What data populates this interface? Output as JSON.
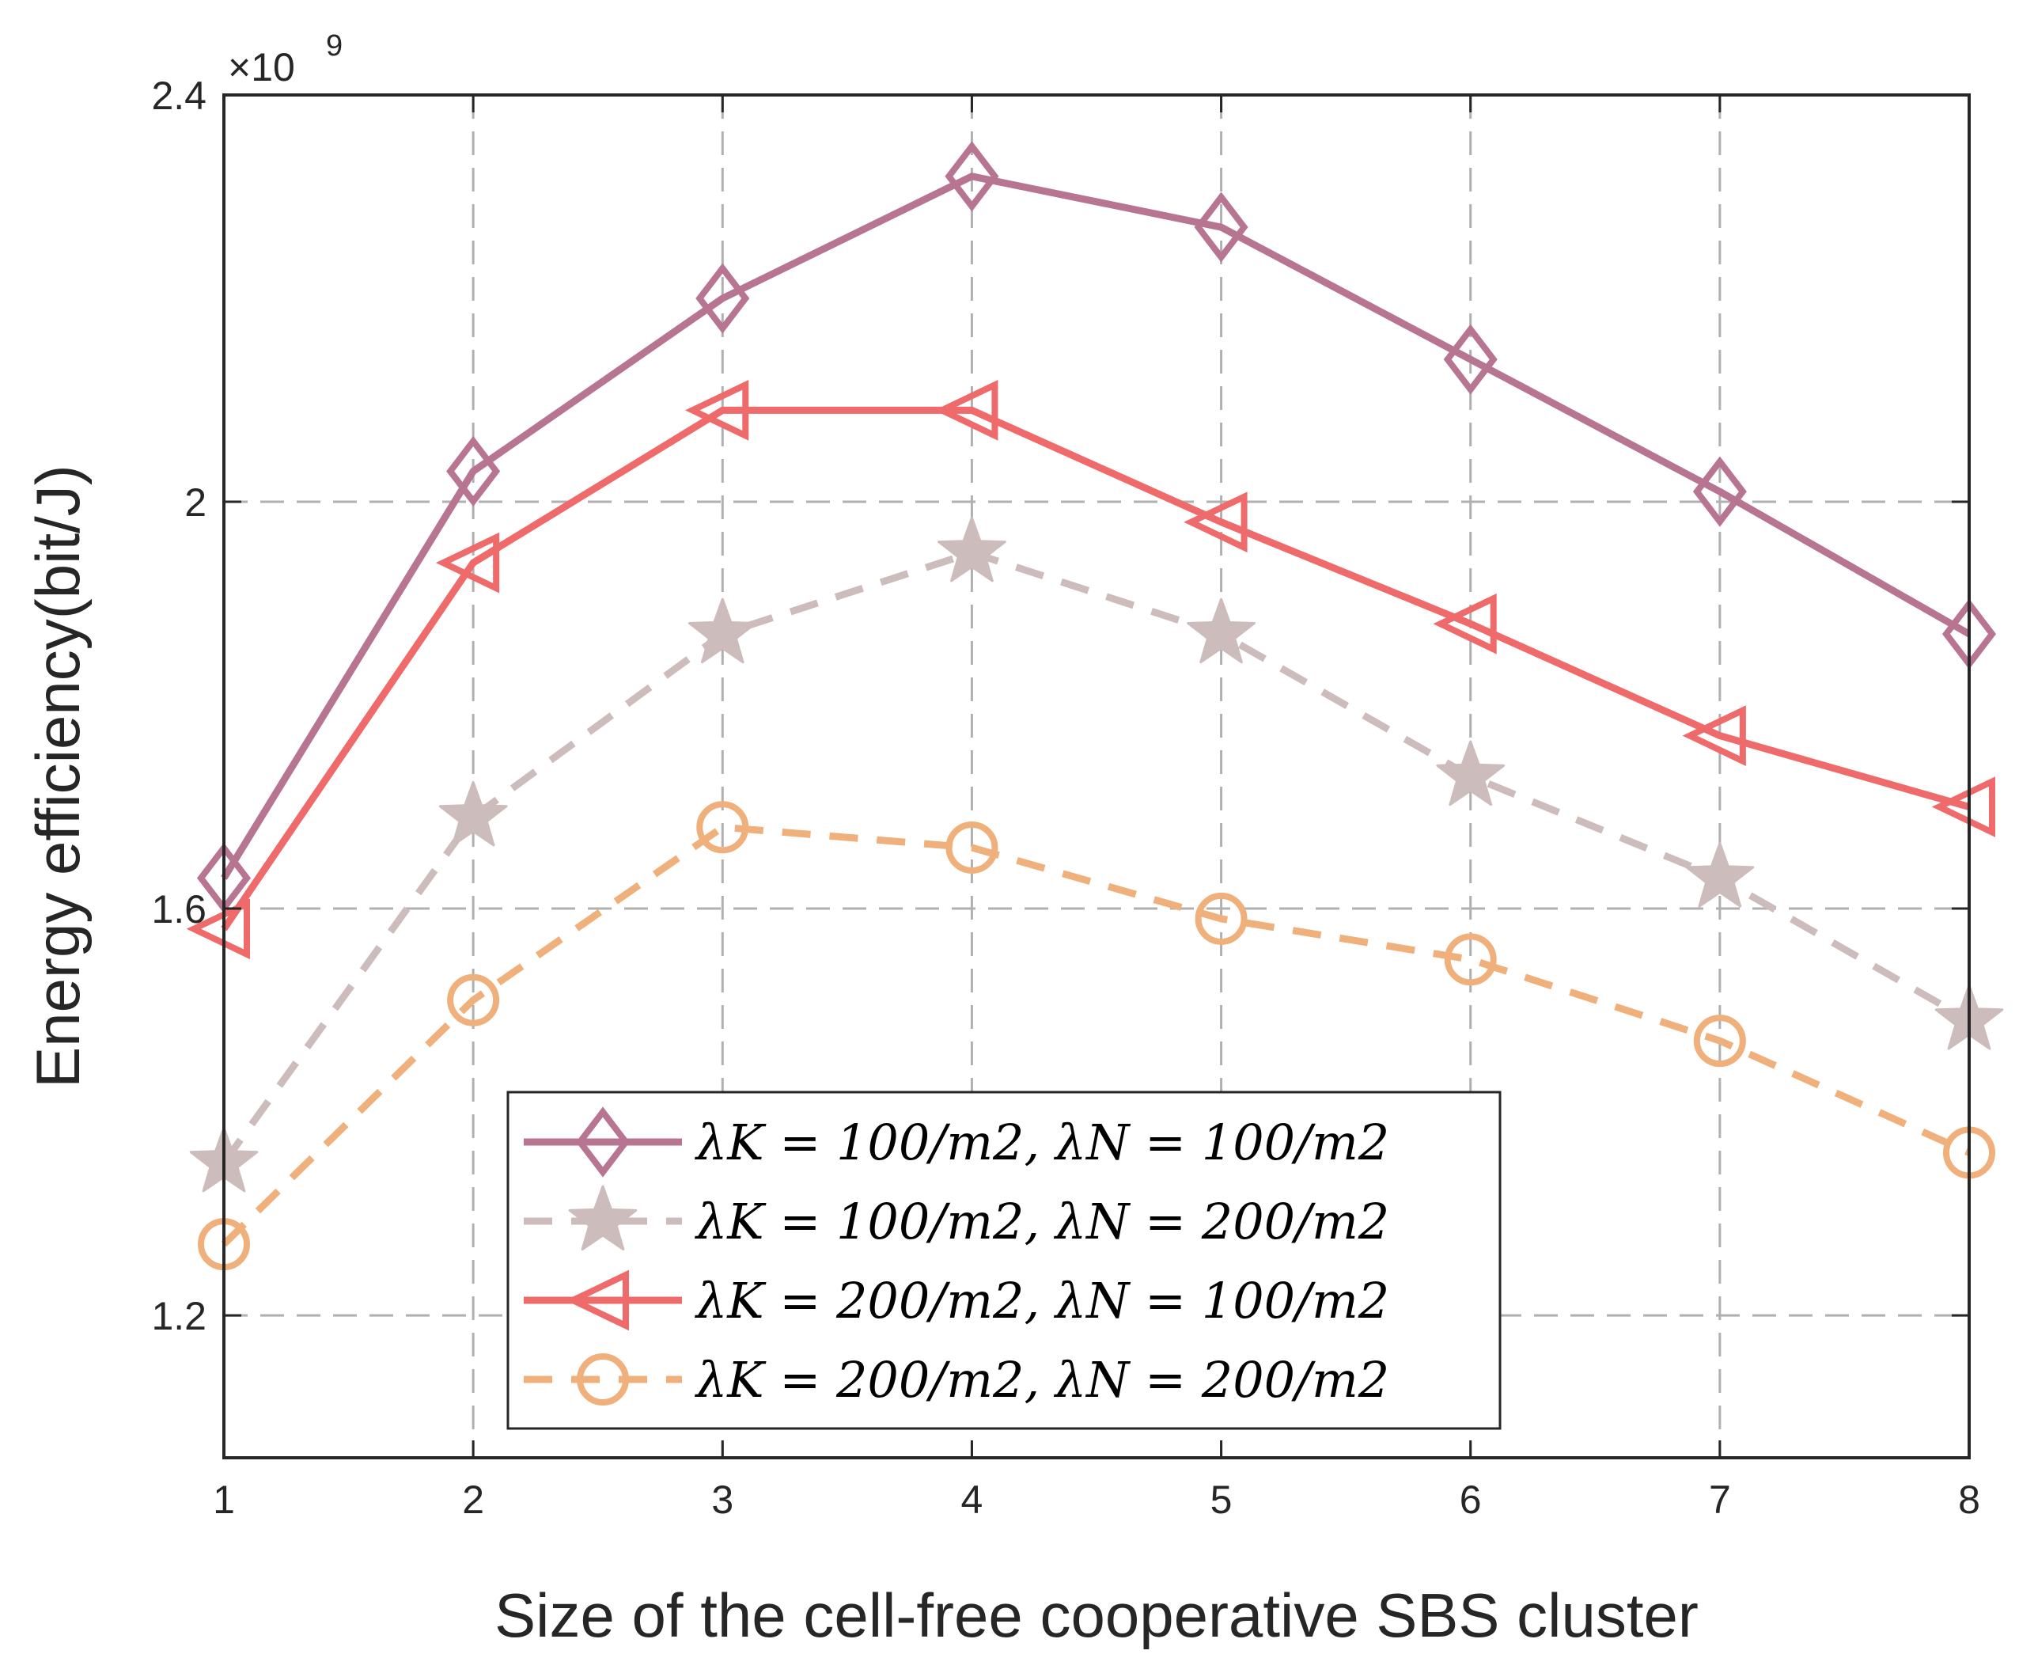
{
  "chart_data": {
    "type": "line",
    "title": "",
    "xlabel": "Size of the cell-free cooperative SBS cluster",
    "ylabel": "Energy efficiency(bit/J)",
    "y_scale_label": "×10",
    "y_scale_exponent": "9",
    "x": [
      1,
      2,
      3,
      4,
      5,
      6,
      7,
      8
    ],
    "x_tick_labels": [
      "1",
      "2",
      "3",
      "4",
      "5",
      "6",
      "7",
      "8"
    ],
    "xlim": [
      1,
      8
    ],
    "ylim": [
      1.06,
      2.4
    ],
    "y_ticks": [
      1.2,
      1.6,
      2,
      2.4
    ],
    "y_tick_labels": [
      "1.2",
      "1.6",
      "2",
      "2.4"
    ],
    "grid": true,
    "legend_position": "bottom-center",
    "series": [
      {
        "name": "λ_K = 100/m², λ_N = 100/m²",
        "legend_label": "λK = 100/m2, λN = 100/m2",
        "color": "#b77592",
        "marker": "diamond",
        "line_style": "solid",
        "values": [
          1.63,
          2.03,
          2.2,
          2.32,
          2.27,
          2.14,
          2.01,
          1.87
        ]
      },
      {
        "name": "λ_K = 100/m², λ_N = 200/m²",
        "legend_label": "λK = 100/m2, λN = 200/m2",
        "color": "#cdbcbc",
        "marker": "star",
        "line_style": "dashed",
        "values": [
          1.35,
          1.69,
          1.87,
          1.95,
          1.87,
          1.73,
          1.63,
          1.49
        ]
      },
      {
        "name": "λ_K = 200/m², λ_N = 100/m²",
        "legend_label": "λK = 200/m2, λN = 100/m2",
        "color": "#ef6a6a",
        "marker": "triangle-left",
        "line_style": "solid",
        "values": [
          1.58,
          1.94,
          2.09,
          2.09,
          1.98,
          1.88,
          1.77,
          1.7
        ]
      },
      {
        "name": "λ_K = 200/m², λ_N = 200/m²",
        "legend_label": "λK = 200/m2, λN = 200/m2",
        "color": "#efb07b",
        "marker": "circle",
        "line_style": "dashed",
        "values": [
          1.27,
          1.51,
          1.68,
          1.66,
          1.59,
          1.55,
          1.47,
          1.36
        ]
      }
    ]
  }
}
